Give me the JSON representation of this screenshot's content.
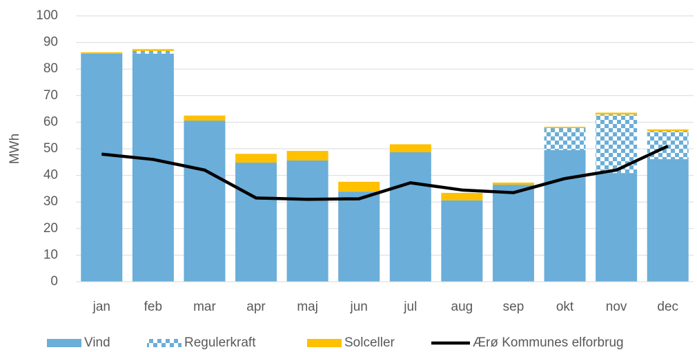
{
  "chart_data": {
    "type": "bar",
    "stacked": true,
    "y_label": "MWh",
    "categories": [
      "jan",
      "feb",
      "mar",
      "apr",
      "maj",
      "jun",
      "jul",
      "aug",
      "sep",
      "okt",
      "nov",
      "dec"
    ],
    "series": [
      {
        "name": "Vind",
        "color": "#6aaed9",
        "values": [
          85.8,
          85.8,
          60.6,
          44.8,
          45.6,
          33.9,
          48.7,
          30.6,
          36.5,
          49.5,
          40.9,
          46.1
        ]
      },
      {
        "name": "Regulerkraft",
        "color": "#6aaed9",
        "pattern": "checkerboard",
        "values": [
          0,
          1,
          0,
          0,
          0,
          0,
          0,
          0,
          0,
          8.3,
          22,
          10.5
        ]
      },
      {
        "name": "Solceller",
        "color": "#ffc000",
        "values": [
          0.5,
          0.7,
          1.9,
          3.3,
          3.6,
          3.7,
          3,
          2.8,
          0.8,
          0.5,
          0.7,
          0.7
        ]
      },
      {
        "name": "Ærø Kommunes elforbrug",
        "color": "#000000",
        "type": "line",
        "values": [
          48,
          46,
          42,
          31.5,
          31,
          31.2,
          37.2,
          34.5,
          33.5,
          38.8,
          42,
          51
        ]
      }
    ],
    "ylim": [
      0,
      100
    ],
    "yticks": [
      0,
      10,
      20,
      30,
      40,
      50,
      60,
      70,
      80,
      90,
      100
    ],
    "grid": true,
    "legend": "bottom"
  }
}
